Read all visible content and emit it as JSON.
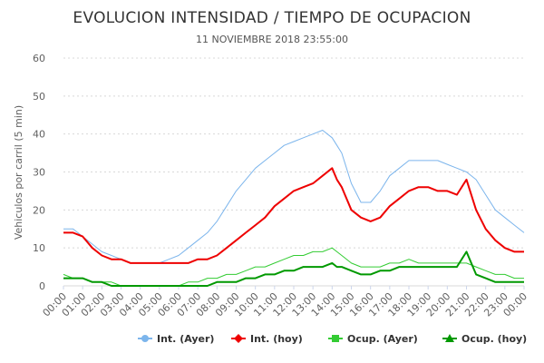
{
  "chart_data": {
    "type": "line",
    "title": "EVOLUCION INTENSIDAD / TIEMPO DE OCUPACION",
    "subtitle": "11 NOVIEMBRE 2018 23:55:00",
    "ylabel": "Vehiculos por carril (5 min)",
    "xlabel": "",
    "ylim": [
      0,
      60
    ],
    "y_ticks": [
      0,
      10,
      20,
      30,
      40,
      50,
      60
    ],
    "x_range": [
      0,
      24
    ],
    "x_tick_labels": [
      "00:00",
      "01:00",
      "02:00",
      "03:00",
      "04:00",
      "05:00",
      "06:00",
      "07:00",
      "08:00",
      "09:00",
      "10:00",
      "11:00",
      "12:00",
      "13:00",
      "14:00",
      "15:00",
      "16:00",
      "17:00",
      "18:00",
      "19:00",
      "20:00",
      "21:00",
      "22:00",
      "23:00",
      "00:00"
    ],
    "grid": true,
    "legend_position": "bottom-right",
    "series": [
      {
        "name": "Int. (Ayer)",
        "color": "#7cb5ec",
        "marker": "circle",
        "x": [
          0,
          0.5,
          1,
          1.5,
          2,
          2.5,
          3,
          3.5,
          4,
          4.5,
          5,
          5.5,
          6,
          6.5,
          7,
          7.5,
          8,
          8.5,
          9,
          9.5,
          10,
          10.5,
          11,
          11.5,
          12,
          12.5,
          13,
          13.5,
          14,
          14.25,
          14.5,
          15,
          15.5,
          16,
          16.5,
          17,
          17.5,
          18,
          18.5,
          19,
          19.5,
          20,
          20.5,
          21,
          21.5,
          22,
          22.5,
          23,
          23.5,
          24
        ],
        "values": [
          15,
          15,
          13,
          11,
          9,
          8,
          7,
          6,
          6,
          6,
          6,
          7,
          8,
          10,
          12,
          14,
          17,
          21,
          25,
          28,
          31,
          33,
          35,
          37,
          38,
          39,
          40,
          41,
          39,
          37,
          35,
          27,
          22,
          22,
          25,
          29,
          31,
          33,
          33,
          33,
          33,
          32,
          31,
          30,
          28,
          24,
          20,
          18,
          16,
          14
        ]
      },
      {
        "name": "Int. (hoy)",
        "color": "#ee0000",
        "marker": "diamond",
        "x": [
          0,
          0.5,
          1,
          1.5,
          2,
          2.5,
          3,
          3.5,
          4,
          4.5,
          5,
          5.5,
          6,
          6.5,
          7,
          7.5,
          8,
          8.5,
          9,
          9.5,
          10,
          10.5,
          11,
          11.5,
          12,
          12.5,
          13,
          13.5,
          14,
          14.25,
          14.5,
          15,
          15.5,
          16,
          16.5,
          17,
          17.5,
          18,
          18.5,
          19,
          19.5,
          20,
          20.5,
          21,
          21.5,
          22,
          22.5,
          23,
          23.5,
          24
        ],
        "values": [
          14,
          14,
          13,
          10,
          8,
          7,
          7,
          6,
          6,
          6,
          6,
          6,
          6,
          6,
          7,
          7,
          8,
          10,
          12,
          14,
          16,
          18,
          21,
          23,
          25,
          26,
          27,
          29,
          31,
          28,
          26,
          20,
          18,
          17,
          18,
          21,
          23,
          25,
          26,
          26,
          25,
          25,
          24,
          28,
          20,
          15,
          12,
          10,
          9,
          9
        ]
      },
      {
        "name": "Ocup. (Ayer)",
        "color": "#33cc33",
        "marker": "square",
        "x": [
          0,
          0.5,
          1,
          1.5,
          2,
          2.5,
          3,
          3.5,
          4,
          4.5,
          5,
          5.5,
          6,
          6.5,
          7,
          7.5,
          8,
          8.5,
          9,
          9.5,
          10,
          10.5,
          11,
          11.5,
          12,
          12.5,
          13,
          13.5,
          14,
          14.25,
          14.5,
          15,
          15.5,
          16,
          16.5,
          17,
          17.5,
          18,
          18.5,
          19,
          19.5,
          20,
          20.5,
          21,
          21.5,
          22,
          22.5,
          23,
          23.5,
          24
        ],
        "values": [
          3,
          2,
          2,
          1,
          1,
          1,
          0,
          0,
          0,
          0,
          0,
          0,
          0,
          1,
          1,
          2,
          2,
          3,
          3,
          4,
          5,
          5,
          6,
          7,
          8,
          8,
          9,
          9,
          10,
          9,
          8,
          6,
          5,
          5,
          5,
          6,
          6,
          7,
          6,
          6,
          6,
          6,
          6,
          6,
          5,
          4,
          3,
          3,
          2,
          2
        ]
      },
      {
        "name": "Ocup. (hoy)",
        "color": "#009900",
        "marker": "triangle",
        "x": [
          0,
          0.5,
          1,
          1.5,
          2,
          2.5,
          3,
          3.5,
          4,
          4.5,
          5,
          5.5,
          6,
          6.5,
          7,
          7.5,
          8,
          8.5,
          9,
          9.5,
          10,
          10.5,
          11,
          11.5,
          12,
          12.5,
          13,
          13.5,
          14,
          14.25,
          14.5,
          15,
          15.5,
          16,
          16.5,
          17,
          17.5,
          18,
          18.5,
          19,
          19.5,
          20,
          20.5,
          21,
          21.5,
          22,
          22.5,
          23,
          23.5,
          24
        ],
        "values": [
          2,
          2,
          2,
          1,
          1,
          0,
          0,
          0,
          0,
          0,
          0,
          0,
          0,
          0,
          0,
          0,
          1,
          1,
          1,
          2,
          2,
          3,
          3,
          4,
          4,
          5,
          5,
          5,
          6,
          5,
          5,
          4,
          3,
          3,
          4,
          4,
          5,
          5,
          5,
          5,
          5,
          5,
          5,
          9,
          3,
          2,
          1,
          1,
          1,
          1
        ]
      }
    ]
  }
}
